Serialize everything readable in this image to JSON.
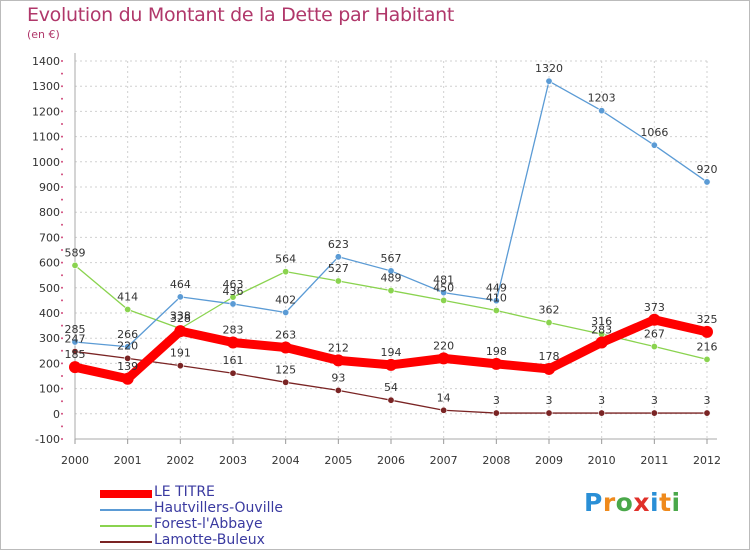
{
  "title": "Evolution du Montant de la Dette par Habitant",
  "unit_label": "(en €)",
  "logo": {
    "letters": [
      "P",
      "r",
      "o",
      "x",
      "i",
      "t",
      "i"
    ],
    "colors": [
      "#2a8fd6",
      "#ef8a1c",
      "#4aa84a",
      "#e0302a",
      "#2a8fd6",
      "#ef8a1c",
      "#4aa84a"
    ]
  },
  "chart_data": {
    "type": "line",
    "title": "Evolution du Montant de la Dette par Habitant",
    "ylabel": "(en €)",
    "xlabel": "",
    "x": [
      "2000",
      "2001",
      "2002",
      "2003",
      "2004",
      "2005",
      "2006",
      "2007",
      "2008",
      "2009",
      "2010",
      "2011",
      "2012"
    ],
    "ylim": [
      -100,
      1400
    ],
    "yticks": [
      "-100",
      "0",
      "100",
      "200",
      "300",
      "400",
      "500",
      "600",
      "700",
      "800",
      "900",
      "1000",
      "1100",
      "1200",
      "1300",
      "1400"
    ],
    "grid": true,
    "legend": "bottom-left",
    "series": [
      {
        "name": "LE TITRE",
        "color": "#ff0000",
        "values": [
          185,
          139,
          328,
          283,
          263,
          212,
          194,
          220,
          198,
          178,
          283,
          373,
          325
        ],
        "labels": [
          "185",
          "139",
          "328",
          "283",
          "263",
          "212",
          "194",
          "220",
          "198",
          "178",
          "283",
          "373",
          "325"
        ]
      },
      {
        "name": "Hautvillers-Ouville",
        "color": "#5b9bd5",
        "values": [
          285,
          266,
          464,
          436,
          402,
          623,
          567,
          481,
          449,
          1320,
          1203,
          1066,
          920
        ],
        "labels": [
          "285",
          "266",
          "464",
          "436",
          "402",
          "623",
          "567",
          "481",
          "449",
          "1320",
          "1203",
          "1066",
          "920"
        ]
      },
      {
        "name": "Forest-l'Abbaye",
        "color": "#8ad34f",
        "values": [
          589,
          414,
          338,
          463,
          564,
          527,
          489,
          450,
          410,
          362,
          316,
          267,
          216
        ],
        "labels": [
          "589",
          "414",
          "338",
          "463",
          "564",
          "527",
          "489",
          "450",
          "410",
          "362",
          "316",
          "267",
          "216"
        ]
      },
      {
        "name": "Lamotte-Buleux",
        "color": "#7a2424",
        "values": [
          247,
          220,
          191,
          161,
          125,
          93,
          54,
          14,
          3,
          3,
          3,
          3,
          3
        ],
        "labels": [
          "247",
          "220",
          "191",
          "161",
          "125",
          "93",
          "54",
          "14",
          "3",
          "3",
          "3",
          "3",
          "3"
        ]
      }
    ]
  }
}
